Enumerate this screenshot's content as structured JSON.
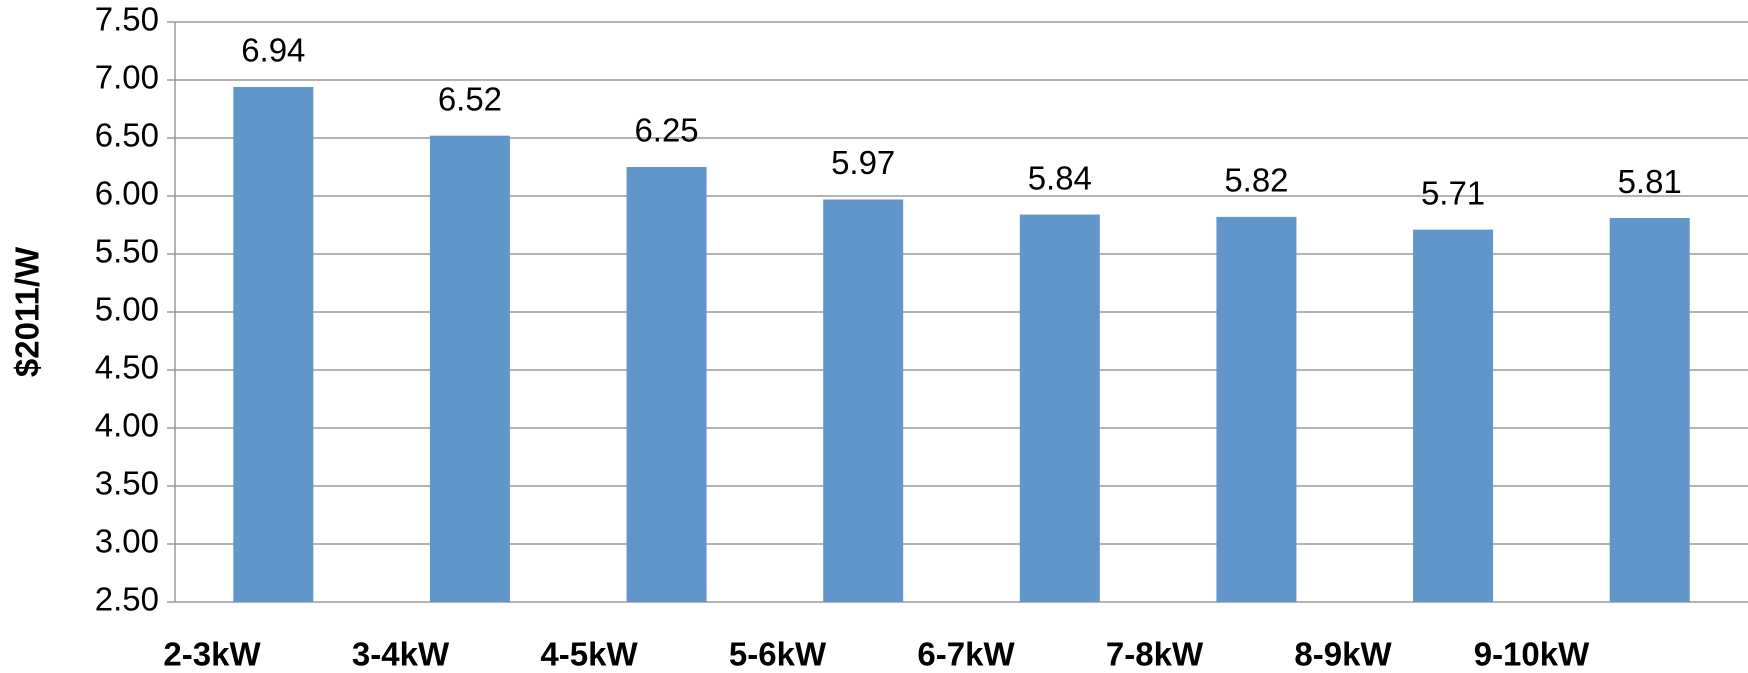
{
  "chart_data": {
    "type": "bar",
    "y_label": "$2011/W",
    "categories": [
      "2-3kW",
      "3-4kW",
      "4-5kW",
      "5-6kW",
      "6-7kW",
      "7-8kW",
      "8-9kW",
      "9-10kW"
    ],
    "values": [
      6.94,
      6.52,
      6.25,
      5.97,
      5.84,
      5.82,
      5.71,
      5.81
    ],
    "color": "#6196cb",
    "ylim": [
      2.5,
      7.5
    ],
    "yticks": [
      {
        "value": 2.5,
        "label": "2.50"
      },
      {
        "value": 3,
        "label": "3.00"
      },
      {
        "value": 3.5,
        "label": "3.50"
      },
      {
        "value": 4,
        "label": "4.00"
      },
      {
        "value": 4.5,
        "label": "4.50"
      },
      {
        "value": 5,
        "label": "5.00"
      },
      {
        "value": 5.5,
        "label": "5.50"
      },
      {
        "value": 6,
        "label": "6.00"
      },
      {
        "value": 6.5,
        "label": "6.50"
      },
      {
        "value": 7,
        "label": "7.00"
      },
      {
        "value": 7.5,
        "label": "7.50"
      }
    ],
    "grid": true
  }
}
